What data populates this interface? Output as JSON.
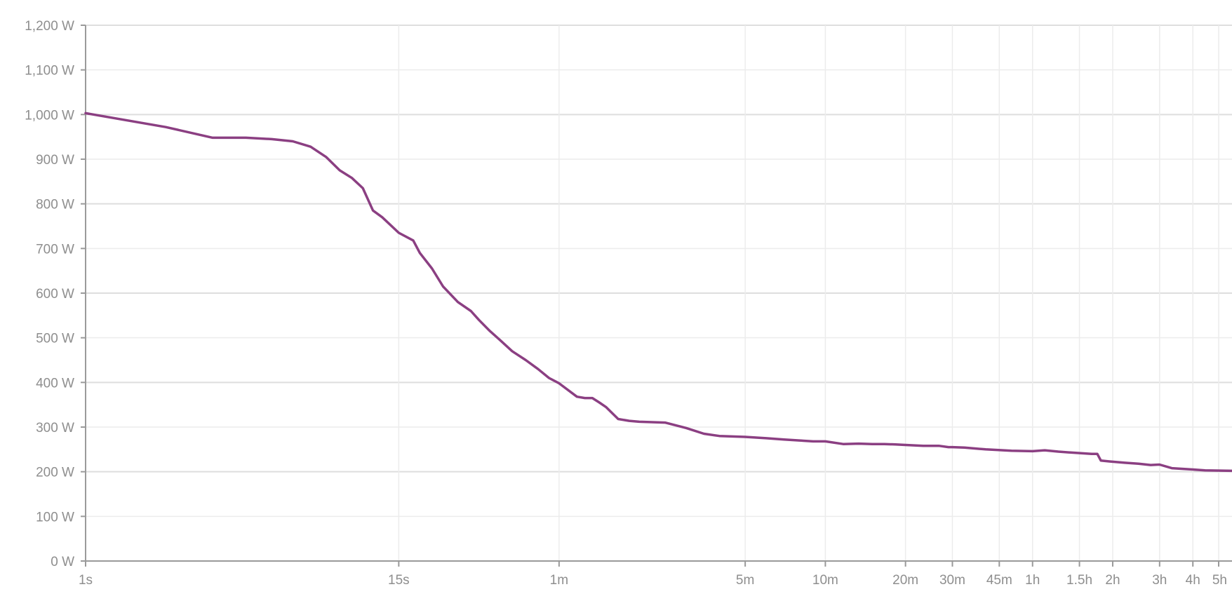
{
  "chart_data": {
    "type": "line",
    "title": "",
    "xlabel": "",
    "ylabel": "",
    "x_scale": "log",
    "x_unit": "seconds",
    "xlim": [
      1,
      18000
    ],
    "ylim": [
      0,
      1200
    ],
    "y_unit": "W",
    "grid": true,
    "line_color": "#8b3f82",
    "y_ticks": [
      {
        "value": 0,
        "label": "0 W"
      },
      {
        "value": 100,
        "label": "100 W"
      },
      {
        "value": 200,
        "label": "200 W"
      },
      {
        "value": 300,
        "label": "300 W"
      },
      {
        "value": 400,
        "label": "400 W"
      },
      {
        "value": 500,
        "label": "500 W"
      },
      {
        "value": 600,
        "label": "600 W"
      },
      {
        "value": 700,
        "label": "700 W"
      },
      {
        "value": 800,
        "label": "800 W"
      },
      {
        "value": 900,
        "label": "900 W"
      },
      {
        "value": 1000,
        "label": "1,000 W"
      },
      {
        "value": 1100,
        "label": "1,100 W"
      },
      {
        "value": 1200,
        "label": "1,200 W"
      }
    ],
    "x_ticks": [
      {
        "value": 1,
        "label": "1s"
      },
      {
        "value": 15,
        "label": "15s"
      },
      {
        "value": 60,
        "label": "1m"
      },
      {
        "value": 300,
        "label": "5m"
      },
      {
        "value": 600,
        "label": "10m"
      },
      {
        "value": 1200,
        "label": "20m"
      },
      {
        "value": 1800,
        "label": "30m"
      },
      {
        "value": 2700,
        "label": "45m"
      },
      {
        "value": 3600,
        "label": "1h"
      },
      {
        "value": 5400,
        "label": "1.5h"
      },
      {
        "value": 7200,
        "label": "2h"
      },
      {
        "value": 10800,
        "label": "3h"
      },
      {
        "value": 14400,
        "label": "4h"
      },
      {
        "value": 18000,
        "label": "5h"
      }
    ],
    "series": [
      {
        "x": [
          1,
          2,
          3,
          4,
          5,
          6,
          7,
          8,
          9,
          10,
          11,
          12,
          13,
          15,
          17,
          18,
          20,
          22,
          25,
          28,
          30,
          33,
          36,
          40,
          45,
          50,
          55,
          60,
          70,
          75,
          80,
          85,
          90,
          100,
          110,
          120,
          150,
          180,
          210,
          240,
          300,
          360,
          420,
          480,
          540,
          600,
          700,
          800,
          900,
          1000,
          1100,
          1200,
          1400,
          1600,
          1740,
          1800,
          2000,
          2400,
          3000,
          3600,
          4000,
          4500,
          5000,
          6000,
          6300,
          6500,
          7000,
          8000,
          9000,
          10000,
          10800,
          12000,
          14400,
          16000,
          18000
        ],
        "y": [
          1003,
          972,
          948,
          948,
          945,
          940,
          928,
          905,
          875,
          858,
          835,
          785,
          770,
          735,
          718,
          690,
          655,
          615,
          580,
          560,
          540,
          515,
          495,
          470,
          450,
          430,
          410,
          398,
          368,
          365,
          365,
          355,
          345,
          318,
          314,
          312,
          310,
          298,
          285,
          280,
          278,
          275,
          272,
          270,
          268,
          268,
          262,
          263,
          262,
          262,
          261,
          260,
          258,
          258,
          255,
          255,
          254,
          250,
          247,
          246,
          248,
          245,
          243,
          240,
          240,
          225,
          223,
          220,
          218,
          215,
          216,
          208,
          205,
          203,
          202
        ]
      }
    ]
  }
}
